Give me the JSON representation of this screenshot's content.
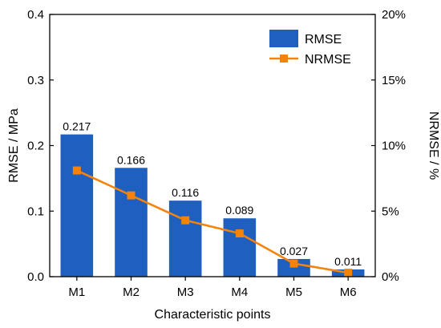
{
  "chart_data": {
    "type": "bar",
    "xlabel": "Characteristic points",
    "ylabel": "RMSE / MPa",
    "y2label": "NRMSE / %",
    "categories": [
      "M1",
      "M2",
      "M3",
      "M4",
      "M5",
      "M6"
    ],
    "ylim": [
      0,
      0.4
    ],
    "y2lim": [
      0,
      20
    ],
    "yticks": [
      "0.0",
      "0.1",
      "0.2",
      "0.3",
      "0.4"
    ],
    "y2ticks": [
      "0%",
      "5%",
      "10%",
      "15%",
      "20%"
    ],
    "series": [
      {
        "name": "RMSE",
        "type": "bar",
        "axis": "left",
        "color": "#1f5fbf",
        "values": [
          0.217,
          0.166,
          0.116,
          0.089,
          0.027,
          0.011
        ],
        "labels": [
          "0.217",
          "0.166",
          "0.116",
          "0.089",
          "0.027",
          "0.011"
        ]
      },
      {
        "name": "NRMSE",
        "type": "line",
        "axis": "right",
        "color": "#f5820a",
        "marker": "square",
        "values": [
          8.1,
          6.2,
          4.3,
          3.3,
          1.0,
          0.3
        ]
      }
    ],
    "legend_position": "top-right",
    "grid": false
  }
}
